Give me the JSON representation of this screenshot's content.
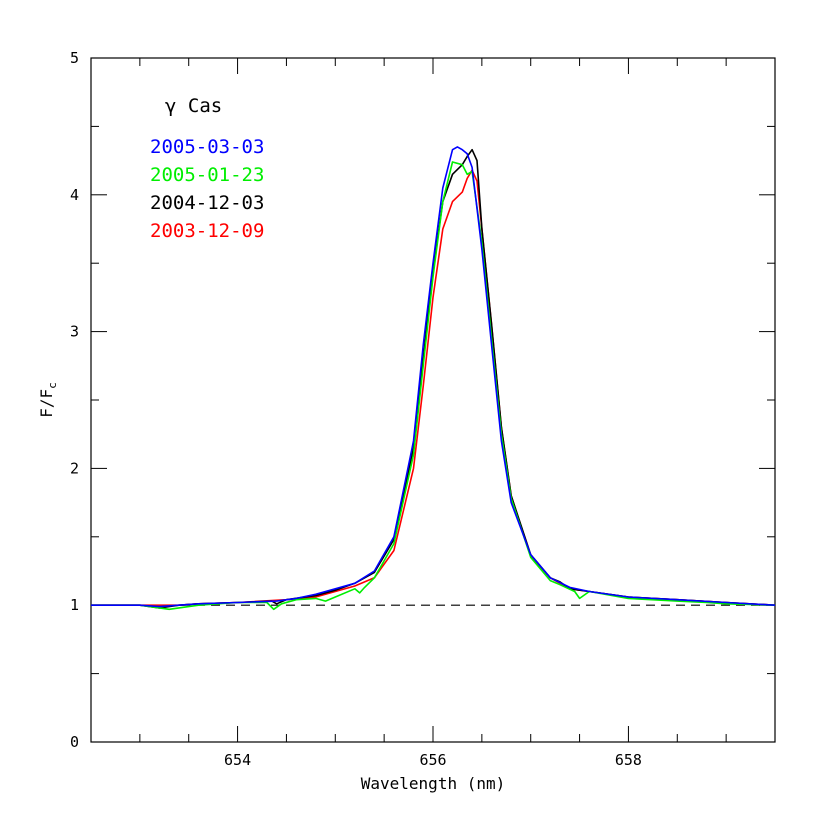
{
  "chart_data": {
    "type": "line",
    "title": "γ Cas",
    "xlabel": "Wavelength (nm)",
    "ylabel": "F/F",
    "ylabel_sub": "c",
    "xlim": [
      652.5,
      659.5
    ],
    "ylim": [
      0,
      5
    ],
    "xticks": [
      654,
      656,
      658
    ],
    "yticks": [
      0,
      1,
      2,
      3,
      4,
      5
    ],
    "grid": false,
    "legend_position": "top-left",
    "reference_line": {
      "y": 1,
      "style": "dashed",
      "color": "#000000"
    },
    "series": [
      {
        "name": "2005-03-03",
        "color": "#0000ff",
        "x": [
          652.5,
          653.0,
          653.2,
          653.4,
          653.6,
          654.0,
          654.4,
          654.6,
          654.8,
          655.0,
          655.2,
          655.4,
          655.6,
          655.8,
          655.9,
          656.0,
          656.1,
          656.2,
          656.25,
          656.3,
          656.35,
          656.4,
          656.5,
          656.6,
          656.7,
          656.8,
          657.0,
          657.2,
          657.4,
          657.6,
          658.0,
          658.5,
          659.0,
          659.5
        ],
        "y": [
          1.0,
          1.0,
          0.99,
          1.0,
          1.01,
          1.02,
          1.03,
          1.05,
          1.08,
          1.12,
          1.16,
          1.25,
          1.5,
          2.2,
          2.9,
          3.5,
          4.05,
          4.33,
          4.35,
          4.33,
          4.3,
          4.2,
          3.6,
          2.9,
          2.2,
          1.75,
          1.37,
          1.2,
          1.13,
          1.1,
          1.06,
          1.04,
          1.02,
          1.0
        ]
      },
      {
        "name": "2005-01-23",
        "color": "#00ee00",
        "x": [
          652.5,
          653.0,
          653.2,
          653.3,
          653.4,
          653.6,
          654.0,
          654.3,
          654.37,
          654.45,
          654.6,
          654.8,
          654.9,
          655.0,
          655.2,
          655.25,
          655.3,
          655.4,
          655.6,
          655.8,
          655.9,
          656.0,
          656.1,
          656.2,
          656.3,
          656.35,
          656.4,
          656.5,
          656.6,
          656.7,
          656.8,
          657.0,
          657.2,
          657.3,
          657.45,
          657.5,
          657.6,
          658.0,
          658.5,
          658.8,
          659.0,
          659.5
        ],
        "y": [
          1.0,
          1.0,
          0.98,
          0.97,
          0.98,
          1.0,
          1.02,
          1.02,
          0.97,
          1.01,
          1.04,
          1.05,
          1.03,
          1.06,
          1.12,
          1.09,
          1.13,
          1.2,
          1.45,
          2.1,
          2.75,
          3.4,
          3.95,
          4.24,
          4.22,
          4.15,
          4.17,
          3.65,
          2.95,
          2.25,
          1.78,
          1.35,
          1.18,
          1.15,
          1.1,
          1.05,
          1.1,
          1.05,
          1.03,
          1.02,
          1.01,
          1.0
        ]
      },
      {
        "name": "2004-12-03",
        "color": "#000000",
        "x": [
          652.5,
          653.0,
          653.2,
          653.4,
          653.6,
          654.0,
          654.35,
          654.4,
          654.5,
          654.8,
          655.0,
          655.2,
          655.4,
          655.6,
          655.8,
          655.9,
          656.0,
          656.1,
          656.2,
          656.3,
          656.35,
          656.4,
          656.45,
          656.5,
          656.6,
          656.7,
          656.8,
          657.0,
          657.2,
          657.3,
          657.4,
          657.6,
          658.0,
          658.5,
          659.0,
          659.5
        ],
        "y": [
          1.0,
          1.0,
          0.98,
          1.0,
          1.01,
          1.02,
          1.03,
          1.01,
          1.04,
          1.07,
          1.11,
          1.16,
          1.24,
          1.48,
          2.15,
          2.8,
          3.45,
          3.95,
          4.15,
          4.22,
          4.28,
          4.33,
          4.25,
          3.75,
          3.05,
          2.3,
          1.8,
          1.37,
          1.2,
          1.17,
          1.12,
          1.1,
          1.06,
          1.04,
          1.02,
          1.0
        ]
      },
      {
        "name": "2003-12-09",
        "color": "#ff0000",
        "x": [
          652.5,
          653.0,
          653.4,
          653.6,
          654.0,
          654.5,
          654.8,
          655.0,
          655.2,
          655.4,
          655.6,
          655.8,
          655.9,
          656.0,
          656.1,
          656.2,
          656.3,
          656.35,
          656.4,
          656.45,
          656.5,
          656.6,
          656.7,
          656.8,
          657.0,
          657.2,
          657.4,
          657.6,
          658.0,
          658.5,
          659.0,
          659.5
        ],
        "y": [
          1.0,
          1.0,
          1.0,
          1.01,
          1.02,
          1.04,
          1.06,
          1.1,
          1.14,
          1.2,
          1.4,
          2.0,
          2.6,
          3.25,
          3.75,
          3.95,
          4.02,
          4.12,
          4.18,
          4.1,
          3.75,
          3.05,
          2.3,
          1.8,
          1.36,
          1.2,
          1.12,
          1.1,
          1.06,
          1.04,
          1.02,
          1.0
        ]
      }
    ]
  }
}
